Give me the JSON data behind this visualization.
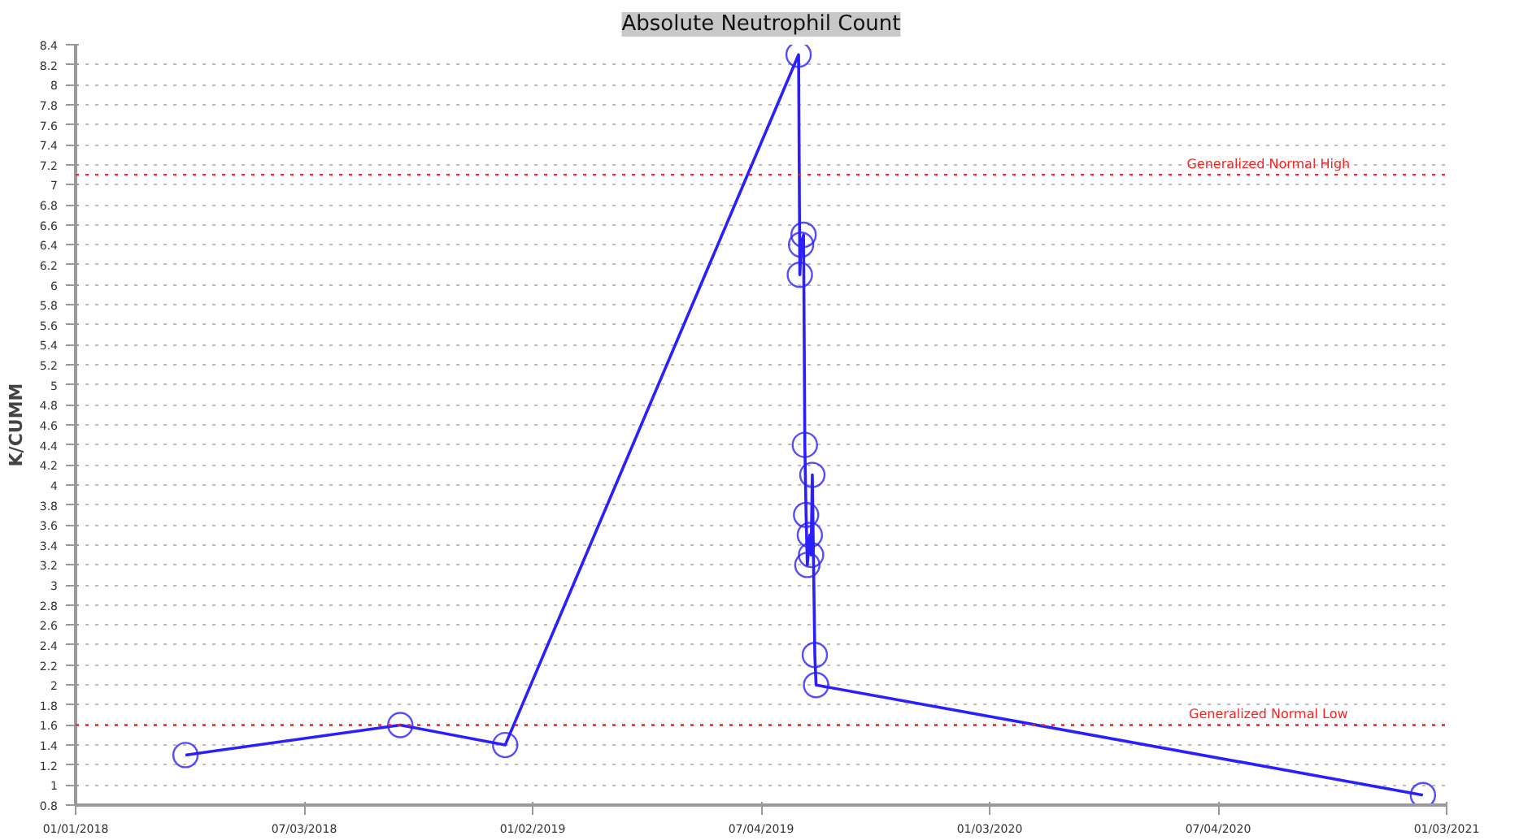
{
  "chart_data": {
    "type": "line",
    "title": "Absolute Neutrophil Count",
    "ylabel": "K/CUMM",
    "x": [
      "2018-03-30",
      "2018-09-18",
      "2018-12-11",
      "2019-08-03",
      "2019-08-04",
      "2019-08-05",
      "2019-08-07",
      "2019-08-08",
      "2019-08-09",
      "2019-08-10",
      "2019-08-12",
      "2019-08-13",
      "2019-08-14",
      "2019-08-16",
      "2019-08-17",
      "2020-12-15"
    ],
    "series": [
      {
        "color": "#2b1fff",
        "values": [
          1.3,
          1.6,
          1.4,
          8.3,
          6.1,
          6.4,
          6.5,
          4.4,
          3.7,
          3.2,
          3.5,
          3.3,
          4.1,
          2.3,
          2.0,
          0.9
        ]
      }
    ],
    "marker": "circle",
    "line_style": "solid",
    "grid": "y",
    "xlim": [
      "2018-01-01",
      "2021-01-03"
    ],
    "xticks": [
      {
        "value": "2018-01-01",
        "label": "01/01/2018"
      },
      {
        "value": "2018-07-03",
        "label": "07/03/2018"
      },
      {
        "value": "2019-01-02",
        "label": "01/02/2019"
      },
      {
        "value": "2019-07-04",
        "label": "07/04/2019"
      },
      {
        "value": "2020-01-03",
        "label": "01/03/2020"
      },
      {
        "value": "2020-07-04",
        "label": "07/04/2020"
      },
      {
        "value": "2021-01-03",
        "label": "01/03/2021"
      }
    ],
    "ylim": [
      0.8,
      8.4
    ],
    "yticks": [
      0.8,
      1,
      1.2,
      1.4,
      1.6,
      1.8,
      2,
      2.2,
      2.4,
      2.6,
      2.8,
      3,
      3.2,
      3.4,
      3.6,
      3.8,
      4,
      4.2,
      4.4,
      4.6,
      4.8,
      5,
      5.2,
      5.4,
      5.6,
      5.8,
      6,
      6.2,
      6.4,
      6.6,
      6.8,
      7,
      7.2,
      7.4,
      7.6,
      7.8,
      8,
      8.2,
      8.4
    ],
    "ref_lines": [
      {
        "axis": "y",
        "value": 7.1,
        "label": "Generalized Normal High",
        "color": "#ff2020",
        "line_style": "dotted"
      },
      {
        "axis": "y",
        "value": 1.6,
        "label": "Generalized Normal Low",
        "color": "#ff2020",
        "line_style": "dotted"
      }
    ]
  }
}
